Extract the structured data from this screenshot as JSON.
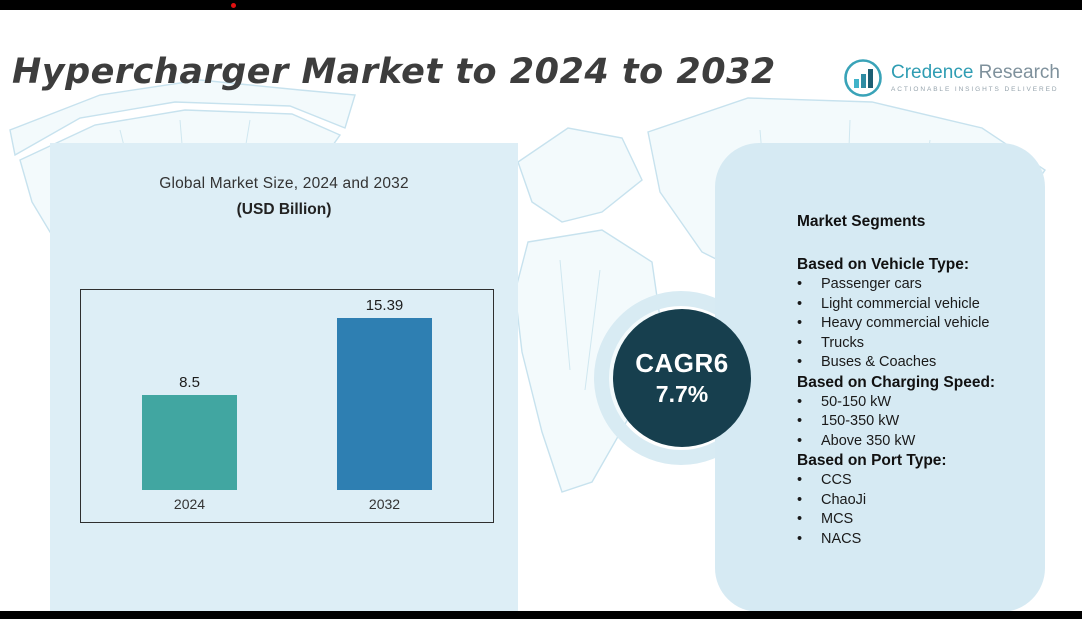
{
  "page": {
    "title": "Hypercharger Market to 2024 to 2032"
  },
  "logo": {
    "name_word1": "Credence",
    "name_word2": "Research",
    "tagline": "Actionable Insights Delivered"
  },
  "chart_panel": {
    "heading_line1": "Global Market Size, 2024 and 2032",
    "heading_line2": "(USD Billion)"
  },
  "chart_data": {
    "type": "bar",
    "categories": [
      "2024",
      "2032"
    ],
    "values": [
      8.5,
      15.39
    ],
    "title": "Global Market Size, 2024 and 2032 (USD Billion)",
    "xlabel": "",
    "ylabel": "USD Billion",
    "ylim": [
      0,
      17
    ],
    "colors": [
      "#41a6a1",
      "#2e7fb2"
    ],
    "grid": false,
    "legend": false
  },
  "cagr": {
    "line1": "CAGR6",
    "line2": "7.7%"
  },
  "segments": {
    "heading": "Market Segments",
    "sections": [
      {
        "title": "Based on Vehicle Type:",
        "items": [
          "Passenger cars",
          "Light commercial vehicle",
          "Heavy commercial vehicle",
          "Trucks",
          "Buses & Coaches"
        ]
      },
      {
        "title": "Based on Charging Speed:",
        "items": [
          "50-150 kW",
          "150-350 kW",
          "Above 350 kW"
        ]
      },
      {
        "title": "Based on Port Type:",
        "items": [
          "CCS",
          "ChaoJi",
          "MCS",
          "NACS"
        ]
      }
    ]
  },
  "colors": {
    "dark_circle": "#173f4e",
    "panel_blue": "#ddeef6",
    "bar_teal": "#41a6a1",
    "bar_blue": "#2e7fb2",
    "accent_red": "#e01010"
  }
}
